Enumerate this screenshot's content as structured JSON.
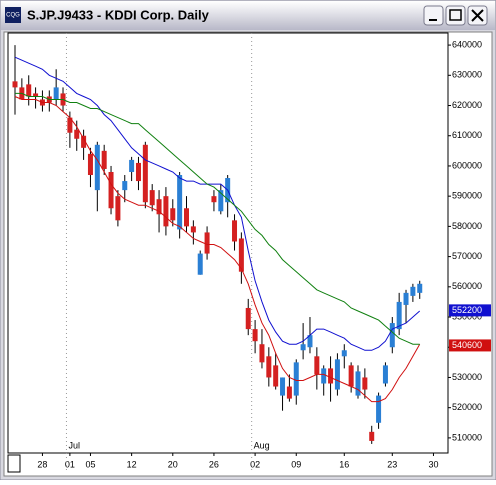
{
  "chart_data": {
    "type": "candlestick",
    "title": "S.JP.J9433 - KDDI Corp. Daily",
    "categories": [
      null,
      null,
      null,
      null,
      "28",
      null,
      null,
      null,
      "01",
      null,
      null,
      "05",
      null,
      null,
      null,
      null,
      null,
      "12",
      null,
      null,
      null,
      null,
      null,
      "20",
      null,
      null,
      null,
      null,
      null,
      "26",
      null,
      null,
      null,
      null,
      null,
      "02",
      null,
      null,
      null,
      null,
      null,
      "09",
      null,
      null,
      null,
      null,
      null,
      null,
      "16",
      null,
      null,
      null,
      null,
      null,
      null,
      "23",
      null,
      null,
      null,
      null,
      null,
      "30"
    ],
    "x_groups": [
      {
        "label": "Jul",
        "category": 8
      },
      {
        "label": "Aug",
        "category": 35
      }
    ],
    "up_color": "#2a7fd4",
    "down_color": "#d42020",
    "open": [
      628000,
      626000,
      627000,
      624000,
      622000,
      623000,
      622000,
      624000,
      616000,
      612000,
      610000,
      604000,
      592000,
      605000,
      598000,
      590000,
      592000,
      598000,
      601000,
      607000,
      592000,
      589000,
      590000,
      586000,
      579000,
      586000,
      580000,
      564000,
      578000,
      590000,
      585000,
      588000,
      582000,
      576000,
      553000,
      546000,
      541000,
      537000,
      534000,
      524000,
      527000,
      524000,
      539000,
      540000,
      537000,
      528000,
      533000,
      526000,
      537000,
      534000,
      524000,
      530000,
      512000,
      515000,
      528000,
      540000,
      546000,
      554000,
      557000,
      558000,
      null,
      null
    ],
    "high": [
      640000,
      629000,
      630000,
      626000,
      625000,
      625000,
      632000,
      626000,
      618000,
      615000,
      612000,
      606000,
      608000,
      607000,
      600000,
      592000,
      597000,
      603000,
      603000,
      608000,
      594000,
      592000,
      593000,
      589000,
      598000,
      590000,
      582000,
      572000,
      580000,
      592000,
      594000,
      597000,
      584000,
      578000,
      556000,
      549000,
      546000,
      540000,
      538000,
      530000,
      531000,
      536000,
      548000,
      550000,
      540000,
      534000,
      537000,
      538000,
      541000,
      535000,
      534000,
      533000,
      514000,
      525000,
      535000,
      550000,
      558000,
      559000,
      561000,
      562000,
      null,
      null
    ],
    "low": [
      617000,
      622000,
      620000,
      619000,
      618000,
      618000,
      620000,
      618000,
      606000,
      605000,
      602000,
      593000,
      585000,
      597000,
      584000,
      580000,
      588000,
      595000,
      592000,
      586000,
      585000,
      578000,
      577000,
      580000,
      576000,
      578000,
      574000,
      564000,
      569000,
      585000,
      584000,
      583000,
      572000,
      561000,
      544000,
      538000,
      533000,
      527000,
      526000,
      519000,
      522000,
      521000,
      536000,
      538000,
      526000,
      524000,
      522000,
      524000,
      533000,
      525000,
      523000,
      523000,
      508000,
      513000,
      527000,
      538000,
      544000,
      548000,
      555000,
      556000,
      null,
      null
    ],
    "close": [
      626000,
      622000,
      623000,
      623000,
      620000,
      621000,
      626000,
      620000,
      611000,
      609000,
      606000,
      597000,
      607000,
      599000,
      586000,
      582000,
      595000,
      602000,
      595000,
      588000,
      587000,
      584000,
      580000,
      582000,
      597000,
      580000,
      578000,
      571000,
      571000,
      588000,
      592000,
      596000,
      575000,
      565000,
      546000,
      542000,
      535000,
      530000,
      527000,
      530000,
      523000,
      535000,
      541000,
      544000,
      531000,
      533000,
      528000,
      536000,
      539000,
      527000,
      532000,
      526000,
      509000,
      524000,
      534000,
      548000,
      555000,
      558000,
      560000,
      561000,
      null,
      null
    ],
    "series": [
      {
        "color": "#1010d0",
        "values": [
          636000,
          635000,
          634000,
          633000,
          632000,
          630000,
          629000,
          628000,
          626000,
          624000,
          623000,
          622000,
          620000,
          617000,
          615000,
          612000,
          609000,
          606000,
          604000,
          602000,
          601000,
          600000,
          599000,
          598000,
          596000,
          595000,
          595000,
          594000,
          594000,
          594000,
          594000,
          592000,
          587000,
          583000,
          572000,
          562000,
          555000,
          549000,
          545000,
          542000,
          541000,
          541000,
          542000,
          544000,
          546000,
          546000,
          545000,
          544000,
          543000,
          541000,
          540000,
          539000,
          539000,
          540000,
          542000,
          546000,
          547000,
          548000,
          550000,
          552000,
          null,
          null
        ]
      },
      {
        "color": "#d01010",
        "values": [
          623000,
          622000,
          622000,
          622000,
          621000,
          621000,
          620000,
          618000,
          616000,
          613000,
          609000,
          605000,
          602000,
          598000,
          594000,
          591000,
          589000,
          588000,
          587000,
          587000,
          586000,
          585000,
          583000,
          581000,
          580000,
          578000,
          576000,
          575000,
          574000,
          574000,
          573000,
          571000,
          569000,
          566000,
          561000,
          554000,
          548000,
          544000,
          538000,
          533000,
          530000,
          529000,
          529000,
          530000,
          531000,
          531000,
          530000,
          529000,
          528000,
          527000,
          526000,
          524000,
          522000,
          522000,
          523000,
          526000,
          530000,
          533000,
          537000,
          541000,
          null,
          null
        ]
      },
      {
        "color": "#108010",
        "values": [
          624000,
          624000,
          623000,
          623000,
          623000,
          622000,
          622000,
          622000,
          621000,
          621000,
          620000,
          619000,
          619000,
          618000,
          617000,
          616000,
          615000,
          614000,
          614000,
          612000,
          610000,
          608000,
          606000,
          604000,
          602000,
          600000,
          598000,
          596000,
          594000,
          593000,
          591000,
          589000,
          587000,
          585000,
          582000,
          579000,
          577000,
          574000,
          572000,
          569000,
          567000,
          565000,
          563000,
          561000,
          559000,
          558000,
          557000,
          556000,
          555000,
          553000,
          552000,
          551000,
          550000,
          549000,
          547000,
          545000,
          543000,
          542000,
          541000,
          541000,
          null,
          null
        ]
      }
    ],
    "price_labels": [
      {
        "value": 552200,
        "color": "#1010d0"
      },
      {
        "value": 540600,
        "color": "#d01010"
      }
    ],
    "ylim": [
      505000,
      644000
    ],
    "yticks": [
      510000,
      520000,
      530000,
      540000,
      550000,
      560000,
      570000,
      580000,
      590000,
      600000,
      610000,
      620000,
      630000,
      640000
    ]
  }
}
